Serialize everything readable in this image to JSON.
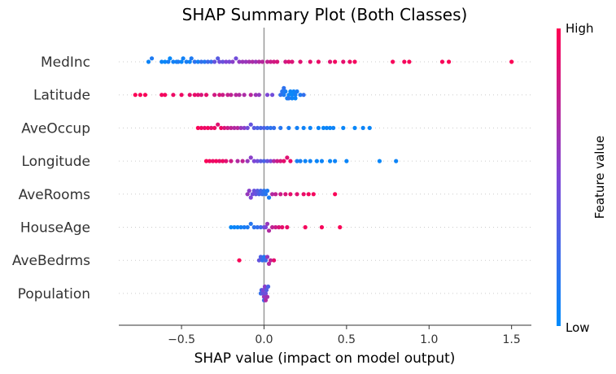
{
  "chart_data": {
    "type": "scatter",
    "variant": "shap-beeswarm",
    "title": "SHAP Summary Plot (Both Classes)",
    "xlabel": "SHAP value (impact on model output)",
    "xlim": [
      -0.88,
      1.62
    ],
    "xticks": [
      -0.5,
      0.0,
      0.5,
      1.0,
      1.5
    ],
    "xtick_labels": [
      "−0.5",
      "0.0",
      "0.5",
      "1.0",
      "1.5"
    ],
    "colorbar": {
      "label": "Feature value",
      "high_label": "High",
      "low_label": "Low",
      "low_color": "#008bfb",
      "high_color": "#ff0052"
    },
    "features": [
      {
        "name": "MedInc",
        "points": [
          [
            -0.7,
            0.05
          ],
          [
            -0.68,
            0.12
          ],
          [
            -0.62,
            0.05
          ],
          [
            -0.6,
            0.03
          ],
          [
            -0.58,
            0.1
          ],
          [
            -0.57,
            0.02
          ],
          [
            -0.55,
            0.08
          ],
          [
            -0.53,
            0.05
          ],
          [
            -0.52,
            0.12
          ],
          [
            -0.5,
            0.03
          ],
          [
            -0.49,
            0.07
          ],
          [
            -0.47,
            0.1
          ],
          [
            -0.45,
            0.05
          ],
          [
            -0.44,
            0.12
          ],
          [
            -0.42,
            0.18
          ],
          [
            -0.4,
            0.08
          ],
          [
            -0.38,
            0.2
          ],
          [
            -0.36,
            0.15
          ],
          [
            -0.34,
            0.25
          ],
          [
            -0.32,
            0.22
          ],
          [
            -0.3,
            0.4
          ],
          [
            -0.28,
            0.35
          ],
          [
            -0.27,
            0.45
          ],
          [
            -0.25,
            0.42
          ],
          [
            -0.23,
            0.5
          ],
          [
            -0.21,
            0.48
          ],
          [
            -0.19,
            0.55
          ],
          [
            -0.17,
            0.45
          ],
          [
            -0.15,
            0.58
          ],
          [
            -0.13,
            0.62
          ],
          [
            -0.11,
            0.6
          ],
          [
            -0.09,
            0.65
          ],
          [
            -0.07,
            0.68
          ],
          [
            -0.05,
            0.62
          ],
          [
            -0.03,
            0.7
          ],
          [
            -0.01,
            0.72
          ],
          [
            0.02,
            0.75
          ],
          [
            0.04,
            0.8
          ],
          [
            0.06,
            0.82
          ],
          [
            0.08,
            0.85
          ],
          [
            0.13,
            0.82
          ],
          [
            0.15,
            0.88
          ],
          [
            0.17,
            0.86
          ],
          [
            0.22,
            0.88
          ],
          [
            0.28,
            0.9
          ],
          [
            0.33,
            0.92
          ],
          [
            0.4,
            0.88
          ],
          [
            0.43,
            0.95
          ],
          [
            0.48,
            0.9
          ],
          [
            0.52,
            0.94
          ],
          [
            0.55,
            0.96
          ],
          [
            0.78,
            0.97
          ],
          [
            0.85,
            0.96
          ],
          [
            0.88,
            0.98
          ],
          [
            1.08,
            0.97
          ],
          [
            1.12,
            0.99
          ],
          [
            1.5,
            0.99
          ]
        ]
      },
      {
        "name": "Latitude",
        "points": [
          [
            -0.78,
            0.99
          ],
          [
            -0.75,
            0.97
          ],
          [
            -0.72,
            0.98
          ],
          [
            -0.62,
            0.95
          ],
          [
            -0.6,
            0.96
          ],
          [
            -0.55,
            0.93
          ],
          [
            -0.5,
            0.94
          ],
          [
            -0.45,
            0.9
          ],
          [
            -0.42,
            0.92
          ],
          [
            -0.4,
            0.88
          ],
          [
            -0.38,
            0.85
          ],
          [
            -0.35,
            0.9
          ],
          [
            -0.3,
            0.82
          ],
          [
            -0.27,
            0.85
          ],
          [
            -0.25,
            0.8
          ],
          [
            -0.22,
            0.78
          ],
          [
            -0.2,
            0.75
          ],
          [
            -0.17,
            0.72
          ],
          [
            -0.15,
            0.7
          ],
          [
            -0.12,
            0.68
          ],
          [
            -0.08,
            0.72
          ],
          [
            -0.05,
            0.62
          ],
          [
            -0.03,
            0.58
          ],
          [
            0.02,
            0.5
          ],
          [
            0.05,
            0.45
          ],
          [
            0.1,
            0.2
          ],
          [
            0.11,
            0.15
          ],
          [
            0.12,
            0.12
          ],
          [
            0.13,
            0.1
          ],
          [
            0.14,
            0.08
          ],
          [
            0.15,
            0.05
          ],
          [
            0.16,
            0.04
          ],
          [
            0.17,
            0.03
          ],
          [
            0.18,
            0.05
          ],
          [
            0.19,
            0.08
          ],
          [
            0.2,
            0.1
          ],
          [
            0.22,
            0.12
          ],
          [
            0.24,
            0.2
          ],
          [
            0.12,
            0.18
          ],
          [
            0.15,
            0.15
          ],
          [
            0.17,
            0.06
          ],
          [
            0.19,
            0.04
          ]
        ]
      },
      {
        "name": "AveOccup",
        "points": [
          [
            -0.4,
            0.98
          ],
          [
            -0.38,
            0.95
          ],
          [
            -0.36,
            0.92
          ],
          [
            -0.34,
            0.96
          ],
          [
            -0.32,
            0.9
          ],
          [
            -0.3,
            0.93
          ],
          [
            -0.28,
            0.88
          ],
          [
            -0.26,
            0.94
          ],
          [
            -0.24,
            0.85
          ],
          [
            -0.22,
            0.8
          ],
          [
            -0.2,
            0.75
          ],
          [
            -0.18,
            0.7
          ],
          [
            -0.16,
            0.72
          ],
          [
            -0.14,
            0.6
          ],
          [
            -0.12,
            0.55
          ],
          [
            -0.1,
            0.45
          ],
          [
            -0.08,
            0.4
          ],
          [
            -0.06,
            0.35
          ],
          [
            -0.04,
            0.3
          ],
          [
            -0.02,
            0.28
          ],
          [
            0.0,
            0.3
          ],
          [
            0.02,
            0.22
          ],
          [
            0.04,
            0.18
          ],
          [
            0.06,
            0.2
          ],
          [
            0.1,
            0.15
          ],
          [
            0.15,
            0.1
          ],
          [
            0.2,
            0.08
          ],
          [
            0.24,
            0.06
          ],
          [
            0.28,
            0.05
          ],
          [
            0.33,
            0.04
          ],
          [
            0.36,
            0.03
          ],
          [
            0.38,
            0.05
          ],
          [
            0.4,
            0.04
          ],
          [
            0.42,
            0.06
          ],
          [
            0.48,
            0.04
          ],
          [
            0.55,
            0.03
          ],
          [
            0.6,
            0.05
          ],
          [
            0.64,
            0.04
          ]
        ]
      },
      {
        "name": "Longitude",
        "points": [
          [
            -0.35,
            0.98
          ],
          [
            -0.33,
            0.95
          ],
          [
            -0.31,
            0.92
          ],
          [
            -0.29,
            0.96
          ],
          [
            -0.27,
            0.9
          ],
          [
            -0.25,
            0.94
          ],
          [
            -0.23,
            0.88
          ],
          [
            -0.2,
            0.8
          ],
          [
            -0.16,
            0.7
          ],
          [
            -0.13,
            0.75
          ],
          [
            -0.1,
            0.6
          ],
          [
            -0.08,
            0.55
          ],
          [
            -0.06,
            0.5
          ],
          [
            -0.04,
            0.45
          ],
          [
            -0.02,
            0.35
          ],
          [
            0.0,
            0.3
          ],
          [
            0.02,
            0.4
          ],
          [
            0.04,
            0.5
          ],
          [
            0.06,
            0.7
          ],
          [
            0.08,
            0.8
          ],
          [
            0.1,
            0.85
          ],
          [
            0.12,
            0.9
          ],
          [
            0.14,
            0.88
          ],
          [
            0.16,
            0.92
          ],
          [
            0.2,
            0.1
          ],
          [
            0.22,
            0.08
          ],
          [
            0.25,
            0.05
          ],
          [
            0.28,
            0.06
          ],
          [
            0.32,
            0.04
          ],
          [
            0.35,
            0.05
          ],
          [
            0.4,
            0.03
          ],
          [
            0.43,
            0.06
          ],
          [
            0.5,
            0.04
          ],
          [
            0.7,
            0.03
          ],
          [
            0.8,
            0.05
          ]
        ]
      },
      {
        "name": "AveRooms",
        "points": [
          [
            -0.1,
            0.6
          ],
          [
            -0.09,
            0.55
          ],
          [
            -0.08,
            0.5
          ],
          [
            -0.07,
            0.45
          ],
          [
            -0.06,
            0.42
          ],
          [
            -0.05,
            0.4
          ],
          [
            -0.04,
            0.35
          ],
          [
            -0.03,
            0.3
          ],
          [
            -0.02,
            0.25
          ],
          [
            -0.01,
            0.2
          ],
          [
            0.0,
            0.18
          ],
          [
            0.01,
            0.15
          ],
          [
            0.02,
            0.12
          ],
          [
            0.03,
            0.1
          ],
          [
            0.05,
            0.7
          ],
          [
            0.07,
            0.75
          ],
          [
            0.1,
            0.8
          ],
          [
            0.13,
            0.85
          ],
          [
            0.16,
            0.9
          ],
          [
            0.2,
            0.88
          ],
          [
            0.24,
            0.92
          ],
          [
            0.27,
            0.95
          ],
          [
            0.3,
            0.96
          ],
          [
            0.43,
            0.98
          ]
        ]
      },
      {
        "name": "HouseAge",
        "points": [
          [
            -0.2,
            0.02
          ],
          [
            -0.18,
            0.05
          ],
          [
            -0.16,
            0.04
          ],
          [
            -0.14,
            0.08
          ],
          [
            -0.12,
            0.1
          ],
          [
            -0.1,
            0.12
          ],
          [
            -0.08,
            0.15
          ],
          [
            -0.06,
            0.18
          ],
          [
            -0.04,
            0.2
          ],
          [
            -0.02,
            0.25
          ],
          [
            0.0,
            0.4
          ],
          [
            0.01,
            0.5
          ],
          [
            0.02,
            0.6
          ],
          [
            0.03,
            0.7
          ],
          [
            0.05,
            0.75
          ],
          [
            0.07,
            0.8
          ],
          [
            0.09,
            0.85
          ],
          [
            0.11,
            0.9
          ],
          [
            0.14,
            0.92
          ],
          [
            0.25,
            0.96
          ],
          [
            0.35,
            0.97
          ],
          [
            0.46,
            0.98
          ]
        ]
      },
      {
        "name": "AveBedrms",
        "points": [
          [
            -0.15,
            0.98
          ],
          [
            -0.03,
            0.4
          ],
          [
            -0.02,
            0.3
          ],
          [
            -0.01,
            0.2
          ],
          [
            0.0,
            0.15
          ],
          [
            0.01,
            0.25
          ],
          [
            0.02,
            0.6
          ],
          [
            0.03,
            0.7
          ],
          [
            0.04,
            0.75
          ],
          [
            0.06,
            0.9
          ]
        ]
      },
      {
        "name": "Population",
        "points": [
          [
            -0.02,
            0.2
          ],
          [
            -0.015,
            0.3
          ],
          [
            -0.01,
            0.4
          ],
          [
            -0.005,
            0.5
          ],
          [
            0.0,
            0.6
          ],
          [
            0.005,
            0.55
          ],
          [
            0.01,
            0.45
          ],
          [
            0.015,
            0.35
          ],
          [
            0.02,
            0.65
          ],
          [
            0.025,
            0.3
          ],
          [
            0.0,
            0.25
          ],
          [
            0.01,
            0.7
          ]
        ]
      }
    ]
  }
}
